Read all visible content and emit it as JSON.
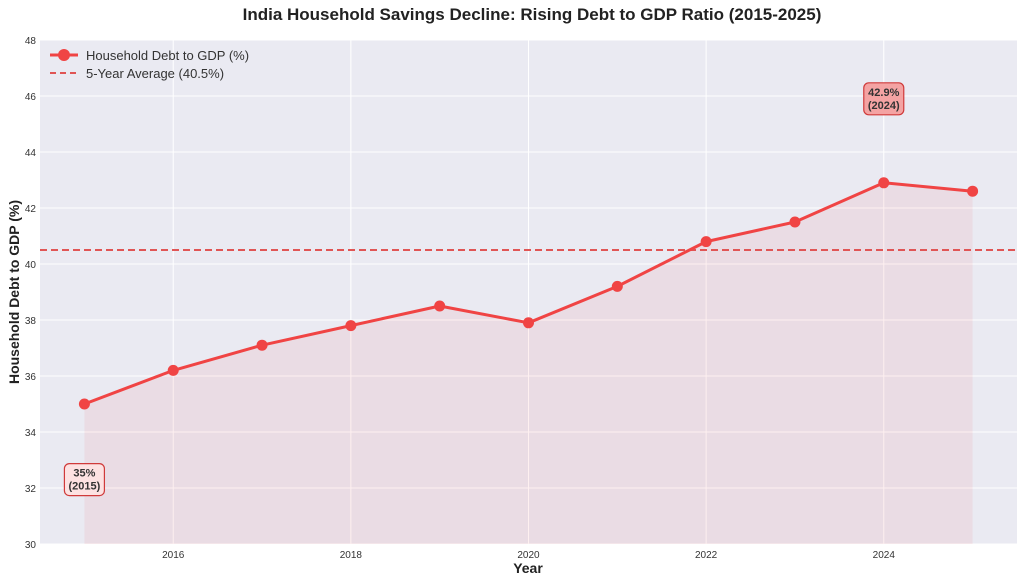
{
  "chart_data": {
    "type": "line",
    "title": "India Household Savings Decline: Rising Debt to GDP Ratio (2015-2025)",
    "xlabel": "Year",
    "ylabel": "Household Debt to GDP (%)",
    "xlim": [
      2014.5,
      2025.5
    ],
    "ylim": [
      30,
      48
    ],
    "xticks": [
      2016,
      2018,
      2020,
      2022,
      2024
    ],
    "yticks": [
      30,
      32,
      34,
      36,
      38,
      40,
      42,
      44,
      46,
      48
    ],
    "grid": true,
    "legend_placement": "top-left",
    "series": [
      {
        "name": "Household Debt to GDP (%)",
        "color": "#f04444",
        "x": [
          2015,
          2016,
          2017,
          2018,
          2019,
          2020,
          2021,
          2022,
          2023,
          2024,
          2025
        ],
        "y": [
          35.0,
          36.2,
          37.1,
          37.8,
          38.5,
          37.9,
          39.2,
          40.8,
          41.5,
          42.9,
          42.6
        ],
        "fill_below": true
      }
    ],
    "reference_lines": [
      {
        "name": "5-Year Average (40.5%)",
        "y": 40.5,
        "style": "dashed",
        "color": "#e05555"
      }
    ],
    "annotations": [
      {
        "line1": "35%",
        "line2": "(2015)",
        "x": 2015,
        "y": 35.0,
        "box_color": "#fde2e2"
      },
      {
        "line1": "42.9%",
        "line2": "(2024)",
        "x": 2024,
        "y": 42.9,
        "box_color": "#f4a3a3"
      }
    ]
  }
}
